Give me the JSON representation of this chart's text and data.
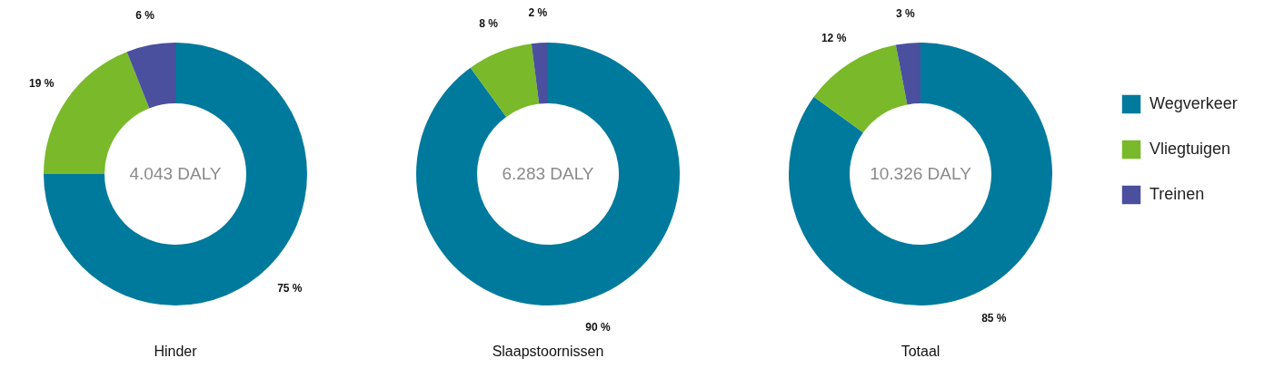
{
  "chart_data": [
    {
      "type": "donut",
      "title": "Hinder",
      "categories": [
        "Wegverkeer",
        "Vliegtuigen",
        "Treinen"
      ],
      "values": [
        75,
        19,
        6
      ],
      "colors": [
        "#007a9c",
        "#7ab929",
        "#4a4f9e"
      ],
      "value_labels": [
        "75 %",
        "19 %",
        "6 %"
      ],
      "annotations": [
        "4.043 DALY"
      ],
      "legend": "right"
    },
    {
      "type": "donut",
      "title": "Slaapstoornissen",
      "categories": [
        null,
        null,
        null
      ],
      "values": [
        90,
        8,
        2
      ],
      "colors": [
        "#007a9c",
        "#7ab929",
        "#4a4f9e"
      ],
      "value_labels": [
        "90 %",
        "8 %",
        "2 %"
      ],
      "annotations": [
        "6.283 DALY"
      ]
    },
    {
      "type": "donut",
      "title": "Totaal",
      "categories": [
        null,
        null,
        null
      ],
      "values": [
        85,
        12,
        3
      ],
      "colors": [
        "#007a9c",
        "#7ab929",
        "#4a4f9e"
      ],
      "value_labels": [
        "85 %",
        "12 %",
        "3 %"
      ],
      "annotations": [
        "10.326 DALY"
      ]
    }
  ]
}
